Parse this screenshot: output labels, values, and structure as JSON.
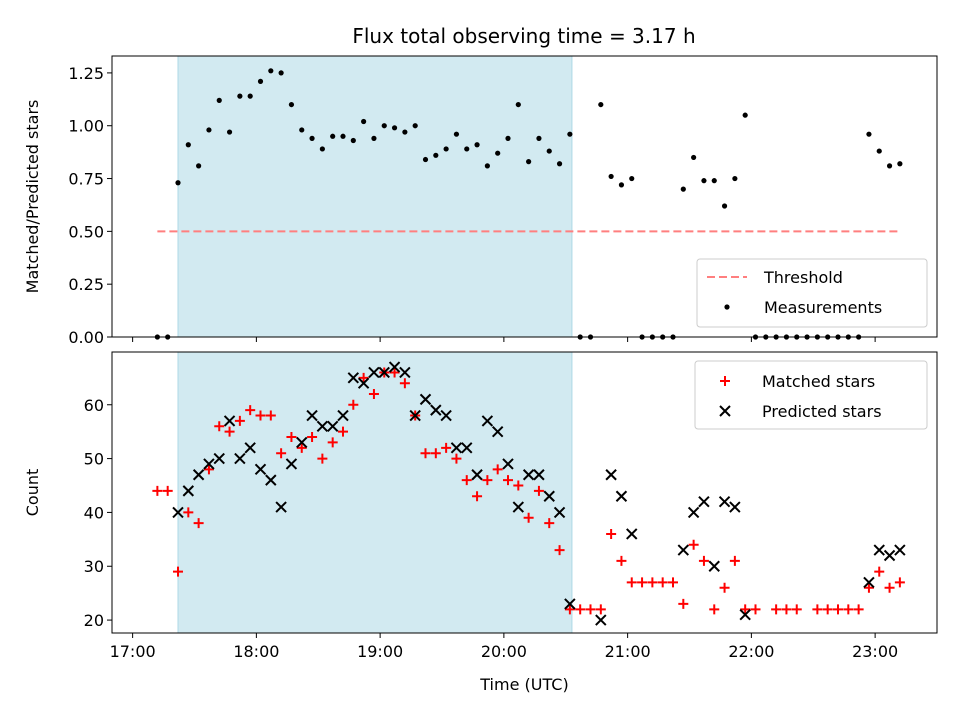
{
  "chart_data": {
    "title": "Flux total observing time = 3.17 h",
    "shaded_window": [
      "17:22",
      "20:33"
    ],
    "x_range": [
      "16:50",
      "23:30"
    ],
    "x_ticks": [
      "17:00",
      "18:00",
      "19:00",
      "20:00",
      "21:00",
      "22:00",
      "23:00"
    ],
    "xlabel": "Time (UTC)",
    "colors": {
      "shade": "#add8e6",
      "threshold": "#ff7f7f",
      "matched": "#ff0000",
      "predicted": "#000000",
      "measurement": "#000000"
    },
    "panels": [
      {
        "type": "scatter",
        "ylabel": "Matched/Predicted stars",
        "ylim": [
          0,
          1.33
        ],
        "y_ticks": [
          "0.00",
          "0.25",
          "0.50",
          "0.75",
          "1.00",
          "1.25"
        ],
        "legend_position": "lower-right",
        "threshold": {
          "name": "Threshold",
          "y": 0.5,
          "x_range": [
            "17:12",
            "23:12"
          ]
        },
        "series": [
          {
            "name": "Measurements",
            "marker": "dot",
            "points": [
              [
                "17:12",
                0.0
              ],
              [
                "17:17",
                0.0
              ],
              [
                "17:22",
                0.73
              ],
              [
                "17:27",
                0.91
              ],
              [
                "17:32",
                0.81
              ],
              [
                "17:37",
                0.98
              ],
              [
                "17:42",
                1.12
              ],
              [
                "17:47",
                0.97
              ],
              [
                "17:52",
                1.14
              ],
              [
                "17:57",
                1.14
              ],
              [
                "18:02",
                1.21
              ],
              [
                "18:07",
                1.26
              ],
              [
                "18:12",
                1.25
              ],
              [
                "18:17",
                1.1
              ],
              [
                "18:22",
                0.98
              ],
              [
                "18:27",
                0.94
              ],
              [
                "18:32",
                0.89
              ],
              [
                "18:37",
                0.95
              ],
              [
                "18:42",
                0.95
              ],
              [
                "18:47",
                0.93
              ],
              [
                "18:52",
                1.02
              ],
              [
                "18:57",
                0.94
              ],
              [
                "19:02",
                1.0
              ],
              [
                "19:07",
                0.99
              ],
              [
                "19:12",
                0.97
              ],
              [
                "19:17",
                1.0
              ],
              [
                "19:22",
                0.84
              ],
              [
                "19:27",
                0.86
              ],
              [
                "19:32",
                0.89
              ],
              [
                "19:37",
                0.96
              ],
              [
                "19:42",
                0.89
              ],
              [
                "19:47",
                0.91
              ],
              [
                "19:52",
                0.81
              ],
              [
                "19:57",
                0.87
              ],
              [
                "20:02",
                0.94
              ],
              [
                "20:07",
                1.1
              ],
              [
                "20:12",
                0.83
              ],
              [
                "20:17",
                0.94
              ],
              [
                "20:22",
                0.88
              ],
              [
                "20:27",
                0.82
              ],
              [
                "20:32",
                0.96
              ],
              [
                "20:37",
                0.0
              ],
              [
                "20:42",
                0.0
              ],
              [
                "20:47",
                1.1
              ],
              [
                "20:52",
                0.76
              ],
              [
                "20:57",
                0.72
              ],
              [
                "21:02",
                0.75
              ],
              [
                "21:07",
                0.0
              ],
              [
                "21:12",
                0.0
              ],
              [
                "21:17",
                0.0
              ],
              [
                "21:22",
                0.0
              ],
              [
                "21:27",
                0.7
              ],
              [
                "21:32",
                0.85
              ],
              [
                "21:37",
                0.74
              ],
              [
                "21:42",
                0.74
              ],
              [
                "21:47",
                0.62
              ],
              [
                "21:52",
                0.75
              ],
              [
                "21:57",
                1.05
              ],
              [
                "22:02",
                0.0
              ],
              [
                "22:07",
                0.0
              ],
              [
                "22:12",
                0.0
              ],
              [
                "22:17",
                0.0
              ],
              [
                "22:22",
                0.0
              ],
              [
                "22:27",
                0.0
              ],
              [
                "22:32",
                0.0
              ],
              [
                "22:37",
                0.0
              ],
              [
                "22:42",
                0.0
              ],
              [
                "22:47",
                0.0
              ],
              [
                "22:52",
                0.0
              ],
              [
                "22:57",
                0.96
              ],
              [
                "23:02",
                0.88
              ],
              [
                "23:07",
                0.81
              ],
              [
                "23:12",
                0.82
              ]
            ]
          }
        ]
      },
      {
        "type": "scatter",
        "ylabel": "Count",
        "ylim": [
          17.6,
          69.8
        ],
        "y_ticks": [
          "20",
          "30",
          "40",
          "50",
          "60"
        ],
        "legend_position": "upper-right",
        "series": [
          {
            "name": "Matched stars",
            "marker": "plus",
            "points": [
              [
                "17:12",
                44
              ],
              [
                "17:17",
                44
              ],
              [
                "17:22",
                29
              ],
              [
                "17:27",
                40
              ],
              [
                "17:32",
                38
              ],
              [
                "17:37",
                48
              ],
              [
                "17:42",
                56
              ],
              [
                "17:47",
                55
              ],
              [
                "17:52",
                57
              ],
              [
                "17:57",
                59
              ],
              [
                "18:02",
                58
              ],
              [
                "18:07",
                58
              ],
              [
                "18:12",
                51
              ],
              [
                "18:17",
                54
              ],
              [
                "18:22",
                52
              ],
              [
                "18:27",
                54
              ],
              [
                "18:32",
                50
              ],
              [
                "18:37",
                53
              ],
              [
                "18:42",
                55
              ],
              [
                "18:47",
                60
              ],
              [
                "18:52",
                65
              ],
              [
                "18:57",
                62
              ],
              [
                "19:02",
                66
              ],
              [
                "19:07",
                66
              ],
              [
                "19:12",
                64
              ],
              [
                "19:17",
                58
              ],
              [
                "19:22",
                51
              ],
              [
                "19:27",
                51
              ],
              [
                "19:32",
                52
              ],
              [
                "19:37",
                50
              ],
              [
                "19:42",
                46
              ],
              [
                "19:47",
                43
              ],
              [
                "19:52",
                46
              ],
              [
                "19:57",
                48
              ],
              [
                "20:02",
                46
              ],
              [
                "20:07",
                45
              ],
              [
                "20:12",
                39
              ],
              [
                "20:17",
                44
              ],
              [
                "20:22",
                38
              ],
              [
                "20:27",
                33
              ],
              [
                "20:32",
                22
              ],
              [
                "20:37",
                22
              ],
              [
                "20:42",
                22
              ],
              [
                "20:47",
                22
              ],
              [
                "20:52",
                36
              ],
              [
                "20:57",
                31
              ],
              [
                "21:02",
                27
              ],
              [
                "21:07",
                27
              ],
              [
                "21:12",
                27
              ],
              [
                "21:17",
                27
              ],
              [
                "21:22",
                27
              ],
              [
                "21:27",
                23
              ],
              [
                "21:32",
                34
              ],
              [
                "21:37",
                31
              ],
              [
                "21:42",
                22
              ],
              [
                "21:47",
                26
              ],
              [
                "21:52",
                31
              ],
              [
                "21:57",
                22
              ],
              [
                "22:02",
                22
              ],
              [
                "22:12",
                22
              ],
              [
                "22:17",
                22
              ],
              [
                "22:22",
                22
              ],
              [
                "22:32",
                22
              ],
              [
                "22:37",
                22
              ],
              [
                "22:42",
                22
              ],
              [
                "22:47",
                22
              ],
              [
                "22:52",
                22
              ],
              [
                "22:57",
                26
              ],
              [
                "23:02",
                29
              ],
              [
                "23:07",
                26
              ],
              [
                "23:12",
                27
              ]
            ]
          },
          {
            "name": "Predicted stars",
            "marker": "x",
            "points": [
              [
                "17:22",
                40
              ],
              [
                "17:27",
                44
              ],
              [
                "17:32",
                47
              ],
              [
                "17:37",
                49
              ],
              [
                "17:42",
                50
              ],
              [
                "17:47",
                57
              ],
              [
                "17:52",
                50
              ],
              [
                "17:57",
                52
              ],
              [
                "18:02",
                48
              ],
              [
                "18:07",
                46
              ],
              [
                "18:12",
                41
              ],
              [
                "18:17",
                49
              ],
              [
                "18:22",
                53
              ],
              [
                "18:27",
                58
              ],
              [
                "18:32",
                56
              ],
              [
                "18:37",
                56
              ],
              [
                "18:42",
                58
              ],
              [
                "18:47",
                65
              ],
              [
                "18:52",
                64
              ],
              [
                "18:57",
                66
              ],
              [
                "19:02",
                66
              ],
              [
                "19:07",
                67
              ],
              [
                "19:12",
                66
              ],
              [
                "19:17",
                58
              ],
              [
                "19:22",
                61
              ],
              [
                "19:27",
                59
              ],
              [
                "19:32",
                58
              ],
              [
                "19:37",
                52
              ],
              [
                "19:42",
                52
              ],
              [
                "19:47",
                47
              ],
              [
                "19:52",
                57
              ],
              [
                "19:57",
                55
              ],
              [
                "20:02",
                49
              ],
              [
                "20:07",
                41
              ],
              [
                "20:12",
                47
              ],
              [
                "20:17",
                47
              ],
              [
                "20:22",
                43
              ],
              [
                "20:27",
                40
              ],
              [
                "20:32",
                23
              ],
              [
                "20:47",
                20
              ],
              [
                "20:52",
                47
              ],
              [
                "20:57",
                43
              ],
              [
                "21:02",
                36
              ],
              [
                "21:27",
                33
              ],
              [
                "21:32",
                40
              ],
              [
                "21:37",
                42
              ],
              [
                "21:42",
                30
              ],
              [
                "21:47",
                42
              ],
              [
                "21:52",
                41
              ],
              [
                "21:57",
                21
              ],
              [
                "22:57",
                27
              ],
              [
                "23:02",
                33
              ],
              [
                "23:07",
                32
              ],
              [
                "23:12",
                33
              ]
            ]
          }
        ]
      }
    ]
  }
}
